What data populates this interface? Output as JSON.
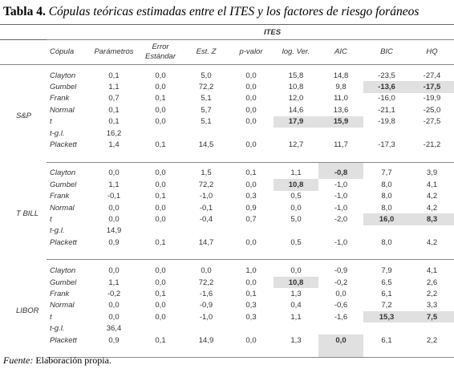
{
  "title": {
    "label": "Tabla 4.",
    "caption": "Cópulas teóricas estimadas entre el ITES y los factores de riesgo foráneos"
  },
  "table": {
    "group_header": "ITES",
    "columns": [
      "Cópula",
      "Parámetros",
      "Error Estándar",
      "Est. Z",
      "p-valor",
      "log. Ver.",
      "AIC",
      "BIC",
      "HQ"
    ],
    "groups": [
      {
        "name": "S&P",
        "rows": [
          {
            "copula": "Clayton",
            "values": [
              "0,1",
              "0,0",
              "5,0",
              "0,0",
              "15,8",
              "14,8",
              "-23,5",
              "-27,4"
            ],
            "highlight": []
          },
          {
            "copula": "Gumbel",
            "values": [
              "1,1",
              "0,0",
              "72,2",
              "0,0",
              "10,8",
              "9,8",
              "-13,6",
              "-17,5"
            ],
            "highlight": [
              6,
              7
            ]
          },
          {
            "copula": "Frank",
            "values": [
              "0,7",
              "0,1",
              "5,1",
              "0,0",
              "12,0",
              "11,0",
              "-16,0",
              "-19,9"
            ],
            "highlight": []
          },
          {
            "copula": "Normal",
            "values": [
              "0,1",
              "0,0",
              "5,7",
              "0,0",
              "14,6",
              "13,6",
              "-21,1",
              "-25,0"
            ],
            "highlight": []
          },
          {
            "copula": "t",
            "values": [
              "0,1",
              "0,0",
              "5,1",
              "0,0",
              "17,9",
              "15,9",
              "-19,8",
              "-27,5"
            ],
            "highlight": [
              4,
              5
            ]
          },
          {
            "copula": "t-g.l.",
            "values": [
              "16,2"
            ],
            "highlight": []
          },
          {
            "copula": "Plackett",
            "values": [
              "1,4",
              "0,1",
              "14,5",
              "0,0",
              "12,7",
              "11,7",
              "-17,3",
              "-21,2"
            ],
            "highlight": []
          }
        ]
      },
      {
        "name": "T BILL",
        "rows": [
          {
            "copula": "Clayton",
            "values": [
              "0,0",
              "0,0",
              "1,5",
              "0,1",
              "1,1",
              "-0,8",
              "7,7",
              "3,9"
            ],
            "highlight": [
              5
            ]
          },
          {
            "copula": "Gumbel",
            "values": [
              "1,1",
              "0,0",
              "72,2",
              "0,0",
              "10,8",
              "-1,0",
              "8,0",
              "4,1"
            ],
            "highlight": [
              4
            ]
          },
          {
            "copula": "Frank",
            "values": [
              "-0,1",
              "0,1",
              "-1,0",
              "0,3",
              "0,5",
              "-1,0",
              "8,0",
              "4,2"
            ],
            "highlight": []
          },
          {
            "copula": "Normal",
            "values": [
              "0,0",
              "0,0",
              "-0,1",
              "0,9",
              "0,0",
              "-1,0",
              "8,0",
              "4,2"
            ],
            "highlight": []
          },
          {
            "copula": "t",
            "values": [
              "0,0",
              "0,0",
              "-0,4",
              "0,7",
              "5,0",
              "-2,0",
              "16,0",
              "8,3"
            ],
            "highlight": [
              6,
              7
            ]
          },
          {
            "copula": "t-g.l.",
            "values": [
              "14,9"
            ],
            "highlight": []
          },
          {
            "copula": "Plackett",
            "values": [
              "0,9",
              "0,1",
              "14,7",
              "0,0",
              "0,5",
              "-1,0",
              "8,0",
              "4,2"
            ],
            "highlight": []
          }
        ]
      },
      {
        "name": "LIBOR",
        "rows": [
          {
            "copula": "Clayton",
            "values": [
              "0,0",
              "0,0",
              "0,0",
              "1,0",
              "0,0",
              "-0,9",
              "7,9",
              "4,1"
            ],
            "highlight": []
          },
          {
            "copula": "Gumbel",
            "values": [
              "1,1",
              "0,0",
              "72,2",
              "0,0",
              "10,8",
              "-0,2",
              "6,5",
              "2,6"
            ],
            "highlight": [
              4
            ]
          },
          {
            "copula": "Frank",
            "values": [
              "-0,2",
              "0,1",
              "-1,6",
              "0,1",
              "1,3",
              "0,0",
              "6,1",
              "2,2"
            ],
            "highlight": []
          },
          {
            "copula": "Normal",
            "values": [
              "0,0",
              "0,0",
              "-0,9",
              "0,3",
              "0,4",
              "-0,6",
              "7,2",
              "3,3"
            ],
            "highlight": []
          },
          {
            "copula": "t",
            "values": [
              "0,0",
              "0,0",
              "-1,0",
              "0,3",
              "1,1",
              "-1,6",
              "15,3",
              "7,5"
            ],
            "highlight": [
              6,
              7
            ]
          },
          {
            "copula": "t-g.l.",
            "values": [
              "36,4"
            ],
            "highlight": []
          },
          {
            "copula": "Plackett",
            "values": [
              "0,9",
              "0,1",
              "14,9",
              "0,0",
              "1,3",
              "0,0",
              "6,1",
              "2,2"
            ],
            "highlight": [
              5
            ]
          }
        ]
      }
    ]
  },
  "footer": {
    "label": "Fuente:",
    "text": "Elaboración propia."
  }
}
